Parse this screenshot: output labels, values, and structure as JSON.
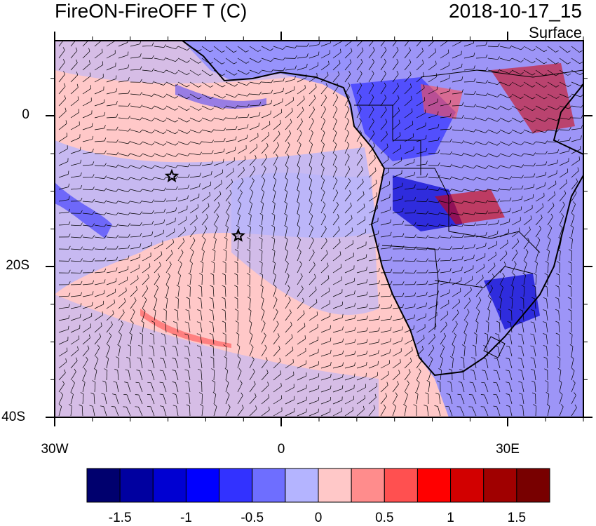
{
  "title": {
    "left": "FireON-FireOFF T (C)",
    "right": "2018-10-17_15",
    "level": "Surface"
  },
  "lat_labels": [
    "0",
    "20S",
    "40S"
  ],
  "lon_labels": [
    "30W",
    "0",
    "30E"
  ],
  "map": {
    "lon_range": [
      -30,
      40
    ],
    "lat_range": [
      -40,
      10
    ],
    "markers": [
      {
        "type": "star",
        "lon": -14.5,
        "lat": -8.0
      },
      {
        "type": "star",
        "lon": -5.7,
        "lat": -15.9
      }
    ],
    "field_description_colors": {
      "negative": "#b4b4ff",
      "positive": "#ffc8c8"
    }
  },
  "colorbar": {
    "levels": [
      "-1.5",
      "-1",
      "-0.5",
      "0",
      "0.5",
      "1",
      "1.5"
    ],
    "colors": [
      "#00006e",
      "#0000a0",
      "#0000d2",
      "#0000ff",
      "#3232ff",
      "#6e6eff",
      "#b4b4ff",
      "#ffc8c8",
      "#ff8c8c",
      "#ff5050",
      "#ff0000",
      "#d20000",
      "#a00000",
      "#780000"
    ]
  }
}
